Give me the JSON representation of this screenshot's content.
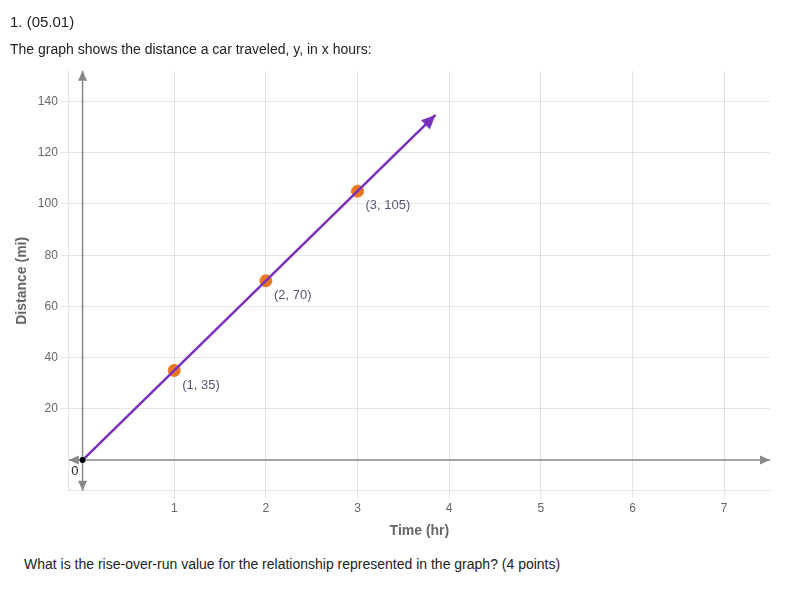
{
  "chart_data": {
    "type": "scatter",
    "title": "1. (05.01)",
    "subtitle": "The graph shows the distance a car traveled, y, in x hours:",
    "xlabel": "Time (hr)",
    "ylabel": "Distance (mi)",
    "series": [
      {
        "type": "line",
        "x": [
          0,
          3.85
        ],
        "values": [
          0,
          134.75
        ],
        "color": "#7B2FBE",
        "marker": "none",
        "line_style": "solid"
      },
      {
        "type": "scatter",
        "x": [
          1,
          2,
          3
        ],
        "values": [
          35,
          70,
          105
        ],
        "color": "#E87722",
        "marker": "circle",
        "data_labels": true,
        "value_labels": [
          "(1, 35)",
          "(2, 70)",
          "(3, 105)"
        ]
      }
    ],
    "annotations": [
      {
        "text": "0",
        "x": 0,
        "y": 0
      },
      {
        "text": "What is the rise-over-run value for the relationship represented in the graph? (4 points)"
      }
    ],
    "xlim": [
      -0.15,
      7.5
    ],
    "ylim": [
      -12,
      152
    ],
    "xticks": [
      1,
      2,
      3,
      4,
      5,
      6,
      7
    ],
    "yticks": [
      20,
      40,
      60,
      80,
      100,
      120,
      140
    ],
    "grid": true
  }
}
